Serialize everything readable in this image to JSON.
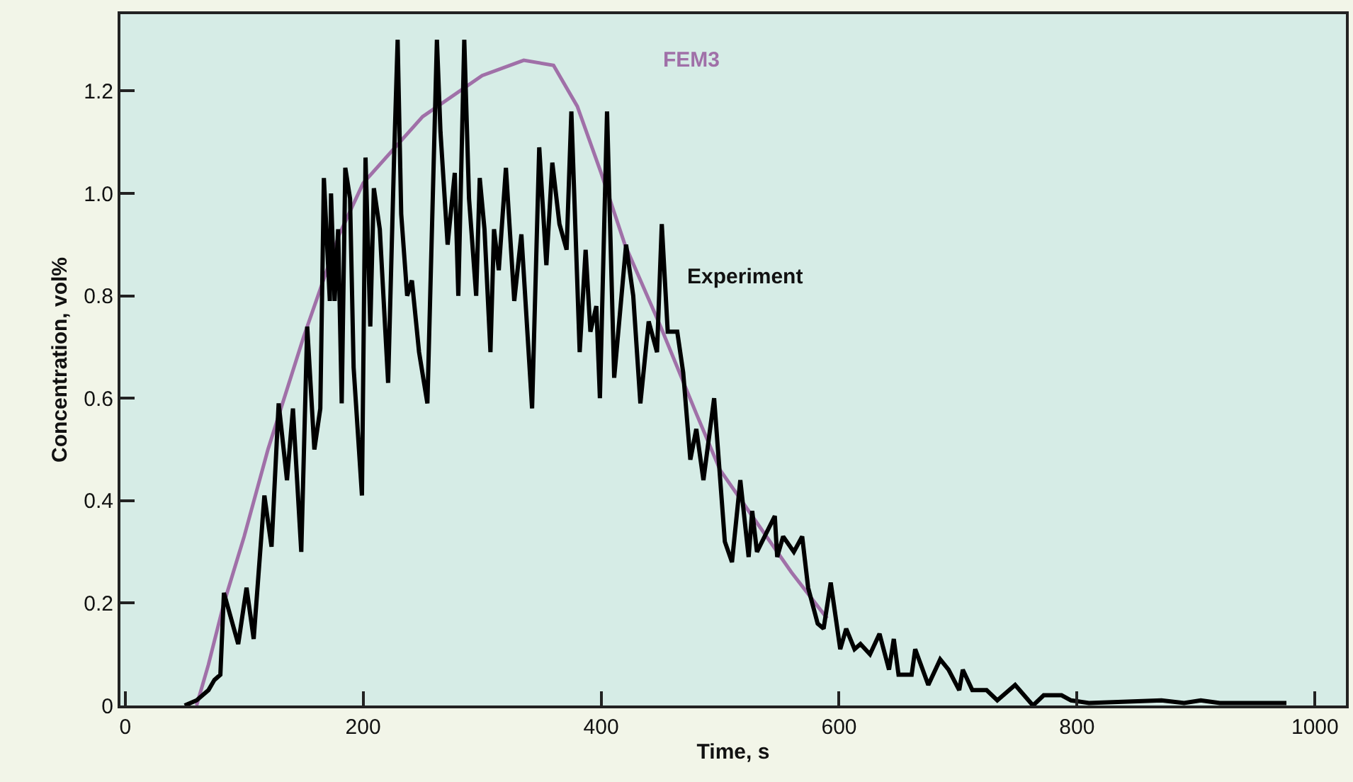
{
  "chart_data": {
    "type": "line",
    "xlabel": "Time, s",
    "ylabel": "Concentration, vol%",
    "xlim": [
      -4,
      1026
    ],
    "ylim": [
      0,
      1.35
    ],
    "xticks": [
      0,
      200,
      400,
      600,
      800,
      1000
    ],
    "yticks": [
      0,
      {
        "value": 0.2,
        "label": "0.2"
      },
      {
        "value": 0.4,
        "label": "0.4"
      },
      {
        "value": 0.6,
        "label": "0.6"
      },
      {
        "value": 0.8,
        "label": "0.8"
      },
      {
        "value": 1.0,
        "label": "1.0"
      },
      {
        "value": 1.2,
        "label": "1.2"
      }
    ],
    "grid": false,
    "legend": false,
    "marker": "none",
    "line_style": "solid",
    "series": [
      {
        "name": "FEM3",
        "color": "#a070a8",
        "x": [
          60,
          70,
          83,
          100,
          120,
          150,
          180,
          200,
          250,
          300,
          335,
          360,
          380,
          400,
          420,
          450,
          480,
          500,
          530,
          560,
          590
        ],
        "values": [
          0,
          0.08,
          0.2,
          0.33,
          0.5,
          0.72,
          0.92,
          1.02,
          1.15,
          1.23,
          1.26,
          1.25,
          1.17,
          1.04,
          0.9,
          0.74,
          0.57,
          0.46,
          0.36,
          0.26,
          0.17
        ]
      },
      {
        "name": "Experiment",
        "color": "#000000",
        "x": [
          50,
          60,
          70,
          75,
          80,
          83,
          95,
          102,
          108,
          117,
          123,
          129,
          136,
          141,
          148,
          153,
          159,
          164,
          167,
          172,
          173,
          176,
          179,
          182,
          185,
          189,
          192,
          199,
          202,
          206,
          209,
          214,
          221,
          226,
          229,
          232,
          237,
          241,
          247,
          254,
          262,
          265,
          271,
          277,
          280,
          285,
          289,
          295,
          298,
          302,
          307,
          310,
          314,
          320,
          327,
          333,
          342,
          348,
          354,
          359,
          365,
          371,
          375,
          382,
          387,
          391,
          396,
          399,
          405,
          411,
          421,
          427,
          433,
          440,
          447,
          451,
          456,
          464,
          469,
          475,
          480,
          486,
          495,
          504,
          510,
          517,
          524,
          527,
          531,
          546,
          548,
          553,
          562,
          569,
          574,
          582,
          587,
          593,
          601,
          606,
          613,
          618,
          626,
          634,
          642,
          646,
          650,
          661,
          664,
          675,
          685,
          692,
          701,
          704,
          712,
          724,
          733,
          748,
          763,
          772,
          787,
          795,
          810,
          871,
          890,
          904,
          920,
          934,
          950,
          976
        ],
        "values": [
          0,
          0.01,
          0.03,
          0.05,
          0.06,
          0.22,
          0.12,
          0.23,
          0.13,
          0.41,
          0.31,
          0.59,
          0.44,
          0.58,
          0.3,
          0.74,
          0.5,
          0.58,
          1.03,
          0.79,
          1.0,
          0.79,
          0.93,
          0.59,
          1.05,
          0.99,
          0.66,
          0.41,
          1.07,
          0.74,
          1.01,
          0.93,
          0.63,
          1.07,
          1.3,
          0.96,
          0.8,
          0.83,
          0.69,
          0.59,
          1.3,
          1.12,
          0.9,
          1.04,
          0.8,
          1.3,
          0.99,
          0.8,
          1.03,
          0.93,
          0.69,
          0.93,
          0.85,
          1.05,
          0.79,
          0.92,
          0.58,
          1.09,
          0.86,
          1.06,
          0.94,
          0.89,
          1.16,
          0.69,
          0.89,
          0.73,
          0.78,
          0.6,
          1.16,
          0.64,
          0.9,
          0.8,
          0.59,
          0.75,
          0.69,
          0.94,
          0.73,
          0.73,
          0.65,
          0.48,
          0.54,
          0.44,
          0.6,
          0.32,
          0.28,
          0.44,
          0.29,
          0.38,
          0.3,
          0.37,
          0.29,
          0.33,
          0.3,
          0.33,
          0.23,
          0.16,
          0.15,
          0.24,
          0.11,
          0.15,
          0.11,
          0.12,
          0.1,
          0.14,
          0.07,
          0.13,
          0.06,
          0.06,
          0.11,
          0.04,
          0.09,
          0.07,
          0.03,
          0.07,
          0.03,
          0.03,
          0.01,
          0.04,
          0,
          0.02,
          0.02,
          0.01,
          0.005,
          0.01,
          0.005,
          0.01,
          0.005,
          0.005,
          0.005,
          0.005
        ]
      }
    ]
  }
}
